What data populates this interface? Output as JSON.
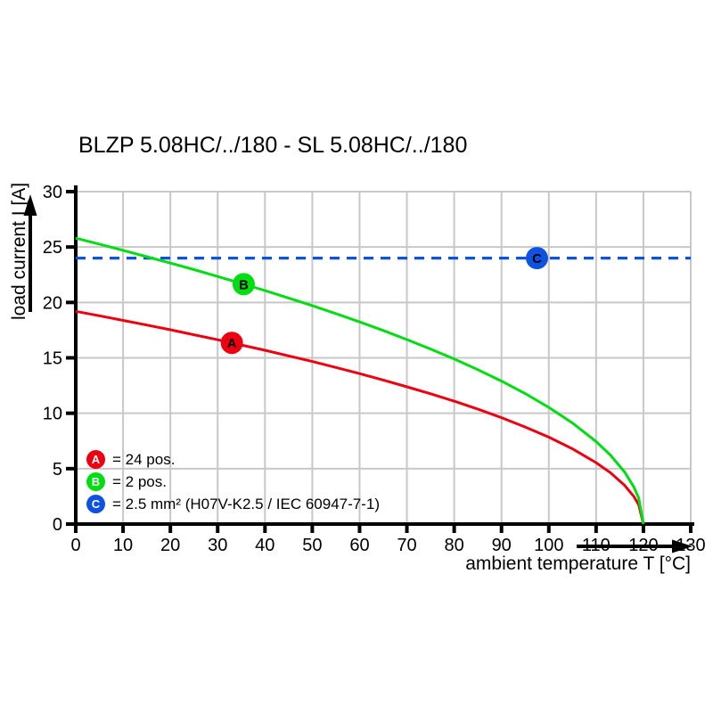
{
  "chart_data": {
    "type": "line",
    "title": "BLZP 5.08HC/../180 - SL 5.08HC/../180",
    "xlabel": "ambient temperature T [°C]",
    "ylabel": "load current I [A]",
    "xlim": [
      0,
      130
    ],
    "ylim": [
      0,
      30
    ],
    "x_ticks": [
      0,
      10,
      20,
      30,
      40,
      50,
      60,
      70,
      80,
      90,
      100,
      110,
      120,
      130
    ],
    "y_ticks": [
      0,
      5,
      10,
      15,
      20,
      25,
      30
    ],
    "grid": true,
    "legend_position": "bottom-left-inside",
    "colors": {
      "grid": "#c8c8c8",
      "axis": "#000000",
      "text": "#000000"
    },
    "series": [
      {
        "name": "curve-A-24pos",
        "letter": "A",
        "label": "= 24 pos.",
        "color": "#ee0011",
        "style": "solid",
        "z": 1,
        "marker_at": {
          "x": 33,
          "y": 16.35
        },
        "points": [
          [
            0,
            19.2
          ],
          [
            5,
            18.8
          ],
          [
            10,
            18.38
          ],
          [
            15,
            17.96
          ],
          [
            20,
            17.53
          ],
          [
            25,
            17.08
          ],
          [
            30,
            16.63
          ],
          [
            35,
            16.16
          ],
          [
            40,
            15.68
          ],
          [
            45,
            15.18
          ],
          [
            50,
            14.67
          ],
          [
            55,
            14.13
          ],
          [
            60,
            13.58
          ],
          [
            65,
            13.0
          ],
          [
            70,
            12.39
          ],
          [
            75,
            11.76
          ],
          [
            80,
            11.09
          ],
          [
            85,
            10.37
          ],
          [
            90,
            9.6
          ],
          [
            95,
            8.76
          ],
          [
            100,
            7.84
          ],
          [
            105,
            6.79
          ],
          [
            110,
            5.54
          ],
          [
            113,
            4.64
          ],
          [
            116,
            3.51
          ],
          [
            118,
            2.48
          ],
          [
            119,
            1.75
          ],
          [
            120,
            0
          ]
        ]
      },
      {
        "name": "curve-B-2pos",
        "letter": "B",
        "label": "= 2 pos.",
        "color": "#00dd11",
        "style": "solid",
        "z": 2,
        "marker_at": {
          "x": 35.5,
          "y": 21.65
        },
        "points": [
          [
            0,
            25.8
          ],
          [
            5,
            25.26
          ],
          [
            10,
            24.7
          ],
          [
            15,
            24.13
          ],
          [
            20,
            23.55
          ],
          [
            25,
            22.96
          ],
          [
            30,
            22.34
          ],
          [
            35,
            21.71
          ],
          [
            40,
            21.07
          ],
          [
            45,
            20.4
          ],
          [
            50,
            19.71
          ],
          [
            55,
            18.99
          ],
          [
            60,
            18.24
          ],
          [
            65,
            17.47
          ],
          [
            70,
            16.65
          ],
          [
            75,
            15.8
          ],
          [
            80,
            14.9
          ],
          [
            85,
            13.93
          ],
          [
            90,
            12.9
          ],
          [
            95,
            11.78
          ],
          [
            100,
            10.53
          ],
          [
            105,
            9.12
          ],
          [
            110,
            7.45
          ],
          [
            113,
            6.23
          ],
          [
            116,
            4.71
          ],
          [
            118,
            3.33
          ],
          [
            119,
            2.36
          ],
          [
            120,
            0
          ]
        ]
      },
      {
        "name": "limit-C-wire",
        "letter": "C",
        "label": "= 2.5 mm² (H07V-K2.5 / IEC 60947-7-1)",
        "color": "#0d52e0",
        "style": "dashed",
        "z": 0,
        "marker_at": {
          "x": 97.5,
          "y": 24
        },
        "points": [
          [
            0,
            24
          ],
          [
            130,
            24
          ]
        ]
      }
    ]
  }
}
